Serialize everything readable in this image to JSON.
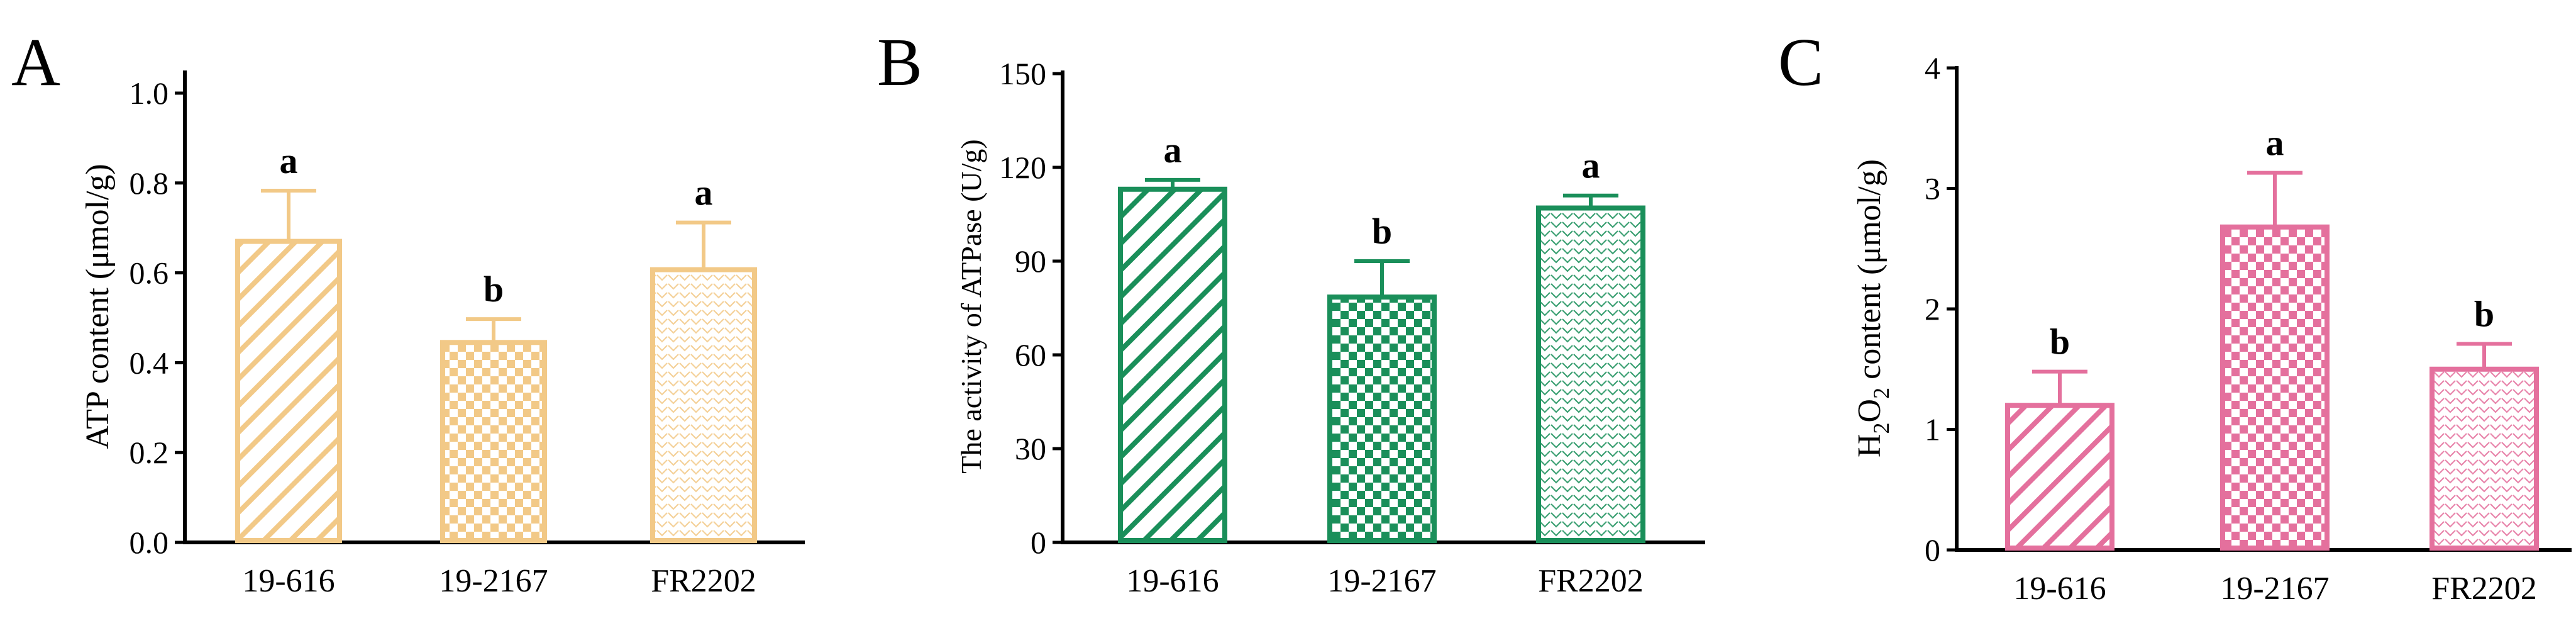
{
  "chart_data": [
    {
      "type": "bar",
      "panel_label": "A",
      "categories": [
        "19-616",
        "19-2167",
        "FR2202"
      ],
      "values": [
        0.67,
        0.445,
        0.607
      ],
      "error": [
        0.113,
        0.052,
        0.105
      ],
      "significance": [
        "a",
        "b",
        "a"
      ],
      "patterns": [
        "diagonal",
        "checker",
        "chevron"
      ],
      "ylabel": "ATP content (μmol/g)",
      "ylim": [
        0,
        1.0
      ],
      "yticks": [
        "0.0",
        "0.2",
        "0.4",
        "0.6",
        "0.8",
        "1.0"
      ],
      "color": "#F2C987",
      "legend": "none",
      "grid": false
    },
    {
      "type": "bar",
      "panel_label": "B",
      "categories": [
        "19-616",
        "19-2167",
        "FR2202"
      ],
      "values": [
        113,
        78.5,
        107
      ],
      "error": [
        3,
        11.5,
        4
      ],
      "significance": [
        "a",
        "b",
        "a"
      ],
      "patterns": [
        "diagonal",
        "checker",
        "chevron"
      ],
      "ylabel": "The activity of ATPase (U/g)",
      "ylim": [
        0,
        150
      ],
      "yticks": [
        "0",
        "30",
        "60",
        "90",
        "120",
        "150"
      ],
      "color": "#1A8F5A",
      "legend": "none",
      "grid": false
    },
    {
      "type": "bar",
      "panel_label": "C",
      "categories": [
        "19-616",
        "19-2167",
        "FR2202"
      ],
      "values": [
        1.2,
        2.68,
        1.5
      ],
      "error": [
        0.28,
        0.45,
        0.21
      ],
      "significance": [
        "b",
        "a",
        "b"
      ],
      "patterns": [
        "diagonal",
        "checker",
        "chevron"
      ],
      "ylabel": "H₂O₂ content (μmol/g)",
      "ylabel_parts": {
        "main": "H",
        "sub1": "2",
        "mid": "O",
        "sub2": "2",
        "rest": " content (μmol/g)"
      },
      "ylim": [
        0,
        4
      ],
      "yticks": [
        "0",
        "1",
        "2",
        "3",
        "4"
      ],
      "color": "#E4709D",
      "legend": "none",
      "grid": false
    }
  ]
}
